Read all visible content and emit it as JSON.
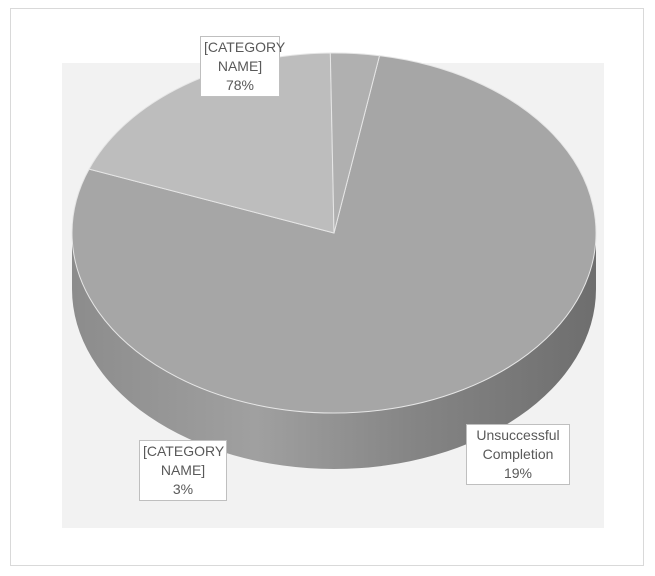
{
  "chart_data": {
    "type": "pie",
    "title": "",
    "style": "3d",
    "slices": [
      {
        "label": "[CATEGORY NAME]",
        "value": 78,
        "percent_text": "78%",
        "color": "#a6a6a6"
      },
      {
        "label": "Unsuccessful Completion",
        "value": 19,
        "percent_text": "19%",
        "color": "#bdbdbd"
      },
      {
        "label": "[CATEGORY NAME]",
        "value": 3,
        "percent_text": "3%",
        "color": "#b0b0b0"
      }
    ],
    "data_labels": [
      {
        "lines": [
          "[CATEGORY",
          "NAME]",
          "78%"
        ]
      },
      {
        "lines": [
          "Unsuccessful",
          "Completion 19%"
        ]
      },
      {
        "lines": [
          "[CATEGORY",
          "NAME]",
          "3%"
        ]
      }
    ],
    "legend": "none"
  }
}
